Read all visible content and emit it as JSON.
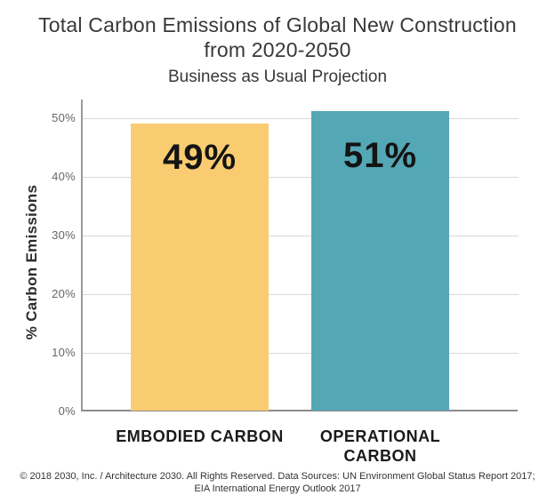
{
  "title": {
    "line1": "Total Carbon Emissions of Global New Construction",
    "line2": "from 2020-2050",
    "subtitle": "Business as Usual Projection"
  },
  "y_axis": {
    "label": "% Carbon Emissions"
  },
  "footer": {
    "line1": "© 2018 2030, Inc. / Architecture 2030. All Rights Reserved. Data Sources: UN Environment Global Status Report 2017;",
    "line2": "EIA International Energy Outlook 2017"
  },
  "colors": {
    "embodied_bar": "#FACC72",
    "operational_bar": "#54A7B4",
    "axis": "#8C8C8C",
    "gridline": "#D9D9D9",
    "tick_text": "#666666",
    "title_text": "#383838"
  },
  "chart_data": {
    "type": "bar",
    "title": "Total Carbon Emissions of Global New Construction from 2020-2050",
    "subtitle": "Business as Usual Projection",
    "categories": [
      "EMBODIED CARBON",
      "OPERATIONAL CARBON"
    ],
    "values": [
      49,
      51
    ],
    "value_labels": [
      "49%",
      "51%"
    ],
    "bar_colors": [
      "#FACC72",
      "#54A7B4"
    ],
    "xlabel": "",
    "ylabel": "% Carbon Emissions",
    "ylim": [
      0,
      50
    ],
    "y_ticks": [
      {
        "value": 0,
        "label": "0%"
      },
      {
        "value": 10,
        "label": "10%"
      },
      {
        "value": 20,
        "label": "20%"
      },
      {
        "value": 30,
        "label": "30%"
      },
      {
        "value": 40,
        "label": "40%"
      },
      {
        "value": 50,
        "label": "50%"
      }
    ],
    "grid": "horizontal",
    "legend": "none"
  }
}
